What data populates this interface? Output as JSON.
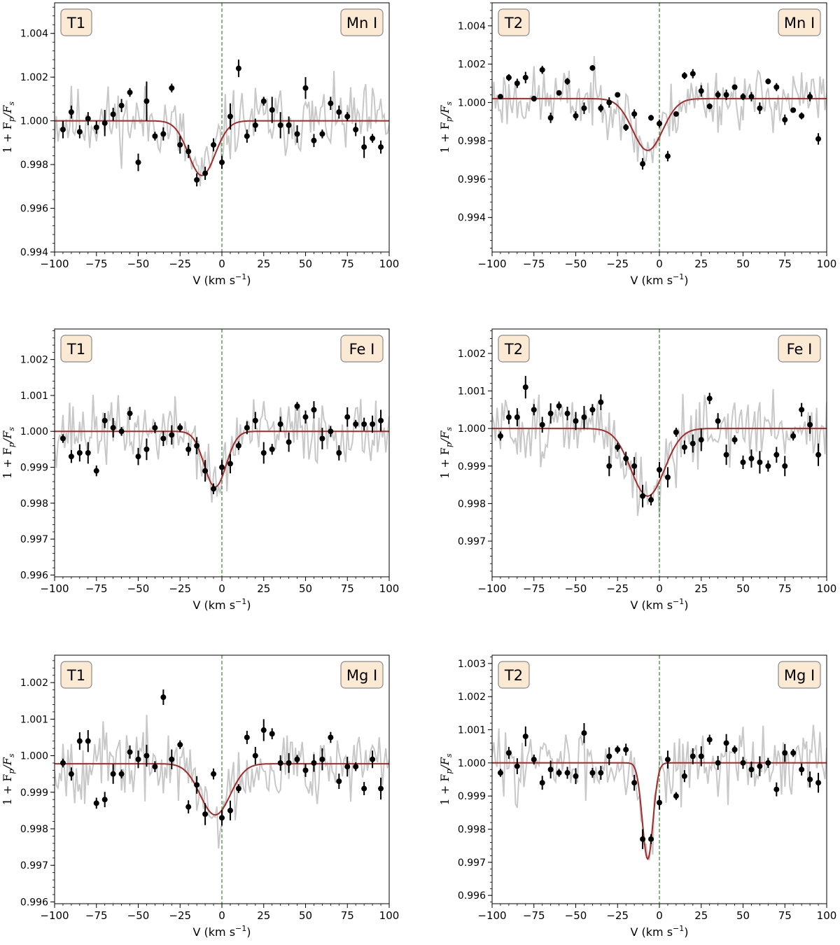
{
  "figure": {
    "xlabel_text": "V (km s",
    "xlabel_exp": "−1",
    "xlabel_close": ")",
    "ylabel_text": "1 + F",
    "ylabel_sub1": "p",
    "ylabel_div": "/F",
    "ylabel_sub2": "s"
  },
  "colors": {
    "noise": "#c8c8c8",
    "model": "#a52a2a",
    "points": "#000000",
    "zero_line": "#2e8b2e",
    "label_box_fill": "#fbe9d3",
    "label_box_stroke": "#8a8a8a"
  },
  "chart_data": [
    {
      "type": "line",
      "id": "p1",
      "transit": "T1",
      "species": "Mn I",
      "xlim": [
        -100,
        100
      ],
      "ylim": [
        0.994,
        1.0054
      ],
      "xticks": [
        -100,
        -75,
        -50,
        -25,
        0,
        25,
        50,
        75,
        100
      ],
      "yticks": [
        0.994,
        0.996,
        0.998,
        1.0,
        1.002,
        1.004
      ],
      "ytick_labels": [
        "0.994",
        "0.996",
        "0.998",
        "1.000",
        "1.002",
        "1.004"
      ],
      "xlabel": "V (km s−1)",
      "ylabel": "1 + Fp/Fs",
      "model": {
        "baseline": 1.0,
        "depth": 0.0025,
        "center": -12,
        "sigma": 8
      },
      "noise": {
        "amplitude": 0.0016,
        "seed": 11
      },
      "x": [
        -95,
        -90,
        -85,
        -80,
        -75,
        -70,
        -65,
        -60,
        -55,
        -50,
        -45,
        -40,
        -35,
        -30,
        -25,
        -20,
        -15,
        -10,
        -5,
        0,
        5,
        10,
        15,
        20,
        25,
        30,
        35,
        40,
        45,
        50,
        55,
        60,
        65,
        70,
        75,
        80,
        85,
        90,
        95
      ],
      "y": [
        0.9996,
        1.0004,
        0.9995,
        1.0001,
        0.9997,
        0.9999,
        1.0003,
        1.0007,
        1.0013,
        0.9981,
        1.0009,
        0.9993,
        0.9994,
        1.0015,
        0.9989,
        0.9986,
        0.9973,
        0.9976,
        0.9989,
        0.9981,
        1.0002,
        1.0024,
        0.9993,
        0.9998,
        1.0009,
        1.0005,
        0.9998,
        0.9998,
        0.9994,
        1.0015,
        0.9991,
        0.9994,
        1.0008,
        1.0004,
        1.0002,
        0.9996,
        0.9988,
        0.9992,
        0.9988
      ],
      "yerr": [
        0.0004,
        0.0003,
        0.0003,
        0.0003,
        0.0003,
        0.0006,
        0.0003,
        0.0003,
        0.0002,
        0.0004,
        0.0009,
        0.0002,
        0.0003,
        0.0002,
        0.0004,
        0.0003,
        0.0003,
        0.0003,
        0.0003,
        0.0003,
        0.0006,
        0.0004,
        0.0003,
        0.0003,
        0.0002,
        0.0006,
        0.0006,
        0.0004,
        0.0004,
        0.0005,
        0.0003,
        0.0002,
        0.0003,
        0.0003,
        0.0002,
        0.0003,
        0.0005,
        0.0002,
        0.0003
      ]
    },
    {
      "type": "line",
      "id": "p2",
      "transit": "T2",
      "species": "Mn I",
      "xlim": [
        -100,
        100
      ],
      "ylim": [
        0.9922,
        1.0052
      ],
      "xticks": [
        -100,
        -75,
        -50,
        -25,
        0,
        25,
        50,
        75,
        100
      ],
      "yticks": [
        0.994,
        0.996,
        0.998,
        1.0,
        1.002,
        1.004
      ],
      "ytick_labels": [
        "0.994",
        "0.996",
        "0.998",
        "1.000",
        "1.002",
        "1.004"
      ],
      "xlabel": "V (km s−1)",
      "ylabel": "1 + Fp/Fs",
      "model": {
        "baseline": 1.0002,
        "depth": 0.0027,
        "center": -7,
        "sigma": 9
      },
      "noise": {
        "amplitude": 0.0016,
        "seed": 23
      },
      "x": [
        -95,
        -90,
        -85,
        -80,
        -75,
        -70,
        -65,
        -60,
        -55,
        -50,
        -45,
        -40,
        -35,
        -30,
        -25,
        -20,
        -15,
        -10,
        -5,
        0,
        5,
        10,
        15,
        20,
        25,
        30,
        35,
        40,
        45,
        50,
        55,
        60,
        65,
        70,
        75,
        80,
        85,
        90,
        95
      ],
      "y": [
        1.0003,
        1.0013,
        1.001,
        1.0013,
        1.0002,
        1.0017,
        0.9992,
        1.0005,
        1.0011,
        0.9993,
        0.9997,
        1.0018,
        0.9997,
        1.0,
        1.0004,
        0.9987,
        0.9994,
        0.9968,
        0.9992,
        0.9989,
        0.9972,
        0.9994,
        1.0014,
        1.0015,
        1.0006,
        0.9998,
        1.0004,
        1.0004,
        1.0008,
        1.0003,
        1.0003,
        0.9997,
        1.0011,
        1.0008,
        0.9991,
        0.9996,
        0.9993,
        1.0003,
        0.9981
      ]
    },
    {
      "type": "line",
      "id": "p3",
      "transit": "T1",
      "species": "Fe I",
      "xlim": [
        -100,
        100
      ],
      "ylim": [
        0.99595,
        1.00285
      ],
      "xticks": [
        -100,
        -75,
        -50,
        -25,
        0,
        25,
        50,
        75,
        100
      ],
      "yticks": [
        0.996,
        0.997,
        0.998,
        0.999,
        1.0,
        1.001,
        1.002
      ],
      "ytick_labels": [
        "0.996",
        "0.997",
        "0.998",
        "0.999",
        "1.000",
        "1.001",
        "1.002"
      ],
      "xlabel": "V (km s−1)",
      "ylabel": "1 + Fp/Fs",
      "model": {
        "baseline": 1.0,
        "depth": 0.00155,
        "center": -4,
        "sigma": 6.5
      },
      "noise": {
        "amplitude": 0.0009,
        "seed": 37
      },
      "x": [
        -95,
        -90,
        -85,
        -80,
        -75,
        -70,
        -65,
        -60,
        -55,
        -50,
        -45,
        -40,
        -35,
        -30,
        -25,
        -20,
        -15,
        -10,
        -5,
        0,
        5,
        10,
        15,
        20,
        25,
        30,
        35,
        40,
        45,
        50,
        55,
        60,
        65,
        70,
        75,
        80,
        85,
        90,
        95
      ],
      "y": [
        0.9998,
        0.9993,
        0.9994,
        0.9994,
        0.9989,
        1.0003,
        1.0001,
        1.0,
        1.0005,
        0.9993,
        0.9995,
        1.0001,
        0.9998,
        0.9999,
        1.0001,
        0.9995,
        0.9996,
        0.9989,
        0.9984,
        0.999,
        0.9991,
        0.9996,
        1.0001,
        1.0003,
        0.9994,
        0.9995,
        1.0002,
        0.9997,
        1.0007,
        1.0004,
        1.0006,
        0.9998,
        1.0,
        0.9994,
        1.0004,
        1.0002,
        1.0002,
        1.0002,
        1.0003
      ]
    },
    {
      "type": "line",
      "id": "p4",
      "transit": "T2",
      "species": "Fe I",
      "xlim": [
        -100,
        100
      ],
      "ylim": [
        0.99605,
        1.00265
      ],
      "xticks": [
        -100,
        -75,
        -50,
        -25,
        0,
        25,
        50,
        75,
        100
      ],
      "yticks": [
        0.997,
        0.998,
        0.999,
        1.0,
        1.001,
        1.002
      ],
      "ytick_labels": [
        "0.997",
        "0.998",
        "0.999",
        "1.000",
        "1.001",
        "1.002"
      ],
      "xlabel": "V (km s−1)",
      "ylabel": "1 + Fp/Fs",
      "model": {
        "baseline": 1.0,
        "depth": 0.0018,
        "center": -7,
        "sigma": 10
      },
      "noise": {
        "amplitude": 0.0009,
        "seed": 51
      },
      "x": [
        -95,
        -90,
        -85,
        -80,
        -75,
        -70,
        -65,
        -60,
        -55,
        -50,
        -45,
        -40,
        -35,
        -30,
        -25,
        -20,
        -15,
        -10,
        -5,
        0,
        5,
        10,
        15,
        20,
        25,
        30,
        35,
        40,
        45,
        50,
        55,
        60,
        65,
        70,
        75,
        80,
        85,
        90,
        95
      ],
      "y": [
        0.9998,
        1.0003,
        1.0003,
        1.0011,
        1.0005,
        1.0001,
        1.0004,
        1.0006,
        1.0004,
        1.0002,
        1.0003,
        1.0005,
        1.0007,
        0.999,
        0.9995,
        0.9992,
        0.999,
        0.9982,
        0.9981,
        0.9989,
        0.9987,
        0.9999,
        0.9995,
        0.9996,
        0.9997,
        1.0008,
        1.0002,
        0.9993,
        0.9997,
        0.9991,
        0.9992,
        0.9991,
        0.999,
        0.9993,
        0.999,
        0.9998,
        1.0005,
        1.0001,
        0.9993
      ]
    },
    {
      "type": "line",
      "id": "p5",
      "transit": "T1",
      "species": "Mg I",
      "xlim": [
        -100,
        100
      ],
      "ylim": [
        0.99595,
        1.00275
      ],
      "xticks": [
        -100,
        -75,
        -50,
        -25,
        0,
        25,
        50,
        75,
        100
      ],
      "yticks": [
        0.996,
        0.997,
        0.998,
        0.999,
        1.0,
        1.001,
        1.002
      ],
      "ytick_labels": [
        "0.996",
        "0.997",
        "0.998",
        "0.999",
        "1.000",
        "1.001",
        "1.002"
      ],
      "xlabel": "V (km s−1)",
      "ylabel": "1 + Fp/Fs",
      "model": {
        "baseline": 0.99978,
        "depth": 0.0014,
        "center": -4,
        "sigma": 9
      },
      "noise": {
        "amplitude": 0.001,
        "seed": 67
      },
      "x": [
        -95,
        -90,
        -85,
        -80,
        -75,
        -70,
        -65,
        -60,
        -55,
        -50,
        -45,
        -40,
        -35,
        -30,
        -25,
        -20,
        -15,
        -10,
        -5,
        0,
        5,
        10,
        15,
        20,
        25,
        30,
        35,
        40,
        45,
        50,
        55,
        60,
        65,
        70,
        75,
        80,
        85,
        90,
        95
      ],
      "y": [
        0.9998,
        0.9995,
        1.0004,
        1.0004,
        0.9987,
        0.9988,
        0.9995,
        0.9995,
        1.0001,
        0.9999,
        1.0,
        0.9997,
        1.0016,
        0.9999,
        1.0003,
        0.9986,
        0.9992,
        0.9984,
        0.9995,
        0.9983,
        0.9985,
        0.9991,
        1.0005,
        1.0,
        1.0007,
        1.0006,
        0.9998,
        0.9998,
        0.9999,
        0.9996,
        0.9998,
        0.9999,
        1.0005,
        0.9993,
        0.9997,
        0.9997,
        0.9991,
        0.9999,
        0.9991
      ]
    },
    {
      "type": "line",
      "id": "p6",
      "transit": "T2",
      "species": "Mg I",
      "xlim": [
        -100,
        100
      ],
      "ylim": [
        0.99575,
        1.00325
      ],
      "xticks": [
        -100,
        -75,
        -50,
        -25,
        0,
        25,
        50,
        75,
        100
      ],
      "yticks": [
        0.996,
        0.997,
        0.998,
        0.999,
        1.0,
        1.001,
        1.002,
        1.003
      ],
      "ytick_labels": [
        "0.996",
        "0.997",
        "0.998",
        "0.999",
        "1.000",
        "1.001",
        "1.002",
        "1.003"
      ],
      "xlabel": "V (km s−1)",
      "ylabel": "1 + Fp/Fs",
      "model": {
        "baseline": 1.0,
        "depth": 0.0029,
        "center": -7,
        "sigma": 3.2
      },
      "noise": {
        "amplitude": 0.001,
        "seed": 83
      },
      "x": [
        -95,
        -90,
        -85,
        -80,
        -75,
        -70,
        -65,
        -60,
        -55,
        -50,
        -45,
        -40,
        -35,
        -30,
        -25,
        -20,
        -15,
        -10,
        -5,
        0,
        5,
        10,
        15,
        20,
        25,
        30,
        35,
        40,
        45,
        50,
        55,
        60,
        65,
        70,
        75,
        80,
        85,
        90,
        95
      ],
      "y": [
        0.9997,
        1.0003,
        0.9999,
        1.0008,
        1.0001,
        0.9994,
        0.9998,
        0.9997,
        0.9997,
        0.9996,
        1.0009,
        0.9997,
        0.9997,
        1.0002,
        1.0004,
        1.0004,
        0.9994,
        0.9977,
        0.9977,
        0.9988,
        1.0001,
        0.999,
        0.9996,
        1.0002,
        1.0002,
        1.0007,
        1.0,
        1.0006,
        1.0004,
        1.0,
        0.9998,
        0.9999,
        1.0,
        0.9992,
        1.0003,
        1.0003,
        0.9998,
        0.9995,
        0.9994
      ]
    }
  ]
}
